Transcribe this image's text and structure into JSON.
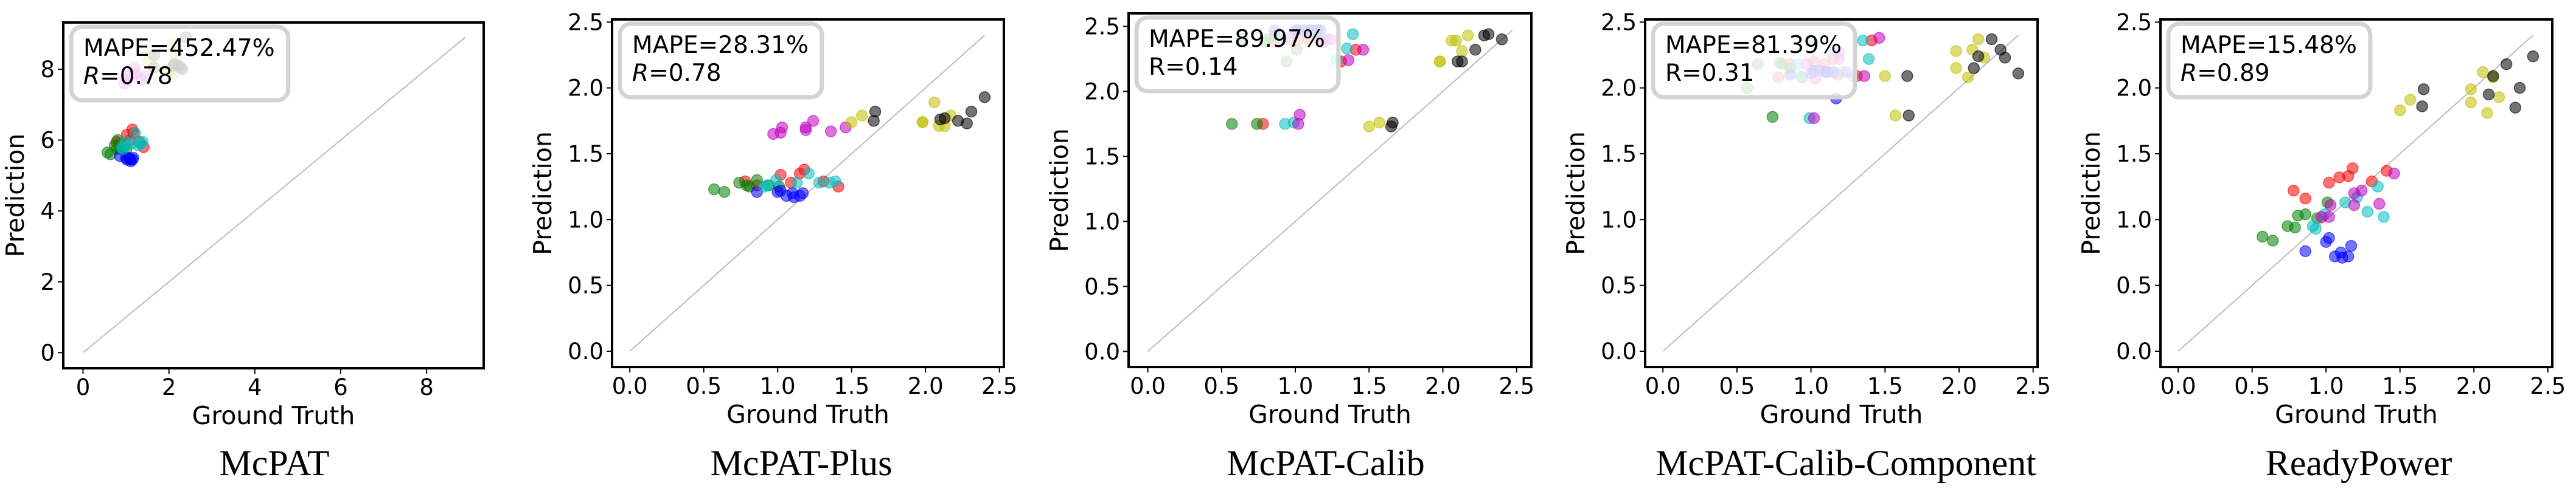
{
  "chart_data": [
    {
      "type": "scatter",
      "title": "McPAT",
      "xlabel": "Ground Truth",
      "ylabel": "Prediction",
      "xlim": [
        -0.46,
        9.33
      ],
      "ylim": [
        -0.44,
        9.32
      ],
      "xticks": [
        "0",
        "2",
        "4",
        "6",
        "8"
      ],
      "yticks": [
        "0",
        "2",
        "4",
        "6",
        "8"
      ],
      "tick_step": 2,
      "diagonal_max": 8.9,
      "annotation": {
        "mape": "MAPE=452.47%",
        "r_symbol": "R",
        "r_value": "=0.78",
        "r_italic": true
      },
      "legend_placement": "top-left",
      "series": [
        {
          "name": "red",
          "color": "#ff0000",
          "x": [
            0.78,
            0.86,
            1.02,
            1.09,
            1.15,
            1.18,
            1.31,
            1.41
          ],
          "y": [
            5.95,
            5.9,
            6.15,
            6.0,
            6.3,
            6.2,
            5.95,
            5.8
          ]
        },
        {
          "name": "green",
          "color": "#008000",
          "x": [
            0.57,
            0.64,
            0.74,
            0.79,
            0.81,
            0.86,
            0.94,
            1.01
          ],
          "y": [
            5.65,
            5.6,
            5.85,
            5.75,
            6.0,
            5.75,
            5.8,
            5.75
          ]
        },
        {
          "name": "blue",
          "color": "#0000ff",
          "x": [
            0.86,
            1.0,
            1.02,
            1.06,
            1.1,
            1.11,
            1.15,
            1.17
          ],
          "y": [
            5.55,
            5.5,
            5.45,
            5.5,
            5.45,
            5.4,
            5.45,
            5.5
          ]
        },
        {
          "name": "cyan",
          "color": "#00bfbf",
          "x": [
            0.91,
            0.93,
            0.99,
            1.13,
            1.21,
            1.28,
            1.35,
            1.39
          ],
          "y": [
            5.8,
            5.75,
            5.95,
            5.9,
            6.2,
            5.85,
            5.9,
            5.95
          ]
        },
        {
          "name": "magenta",
          "color": "#bf00bf",
          "x": [
            0.97,
            1.02,
            1.03,
            1.19,
            1.19,
            1.24,
            1.36,
            1.46
          ],
          "y": [
            7.6,
            7.7,
            7.8,
            8.05,
            7.85,
            7.9,
            7.7,
            7.8
          ]
        },
        {
          "name": "yellow",
          "color": "#bfbf00",
          "x": [
            1.5,
            1.57,
            1.98,
            1.98,
            2.06,
            2.09,
            2.13,
            2.17
          ],
          "y": [
            8.2,
            8.4,
            7.95,
            8.0,
            8.7,
            7.85,
            8.0,
            8.3
          ]
        },
        {
          "name": "black",
          "color": "#000000",
          "x": [
            1.65,
            1.66,
            2.1,
            2.13,
            2.22,
            2.28,
            2.31,
            2.4
          ],
          "y": [
            8.05,
            8.4,
            8.1,
            8.15,
            8.1,
            8.05,
            8.0,
            8.9
          ]
        }
      ]
    },
    {
      "type": "scatter",
      "title": "McPAT-Plus",
      "xlabel": "Ground Truth",
      "ylabel": "Prediction",
      "xlim": [
        -0.12,
        2.53
      ],
      "ylim": [
        -0.12,
        2.52
      ],
      "xticks": [
        "0.0",
        "0.5",
        "1.0",
        "1.5",
        "2.0",
        "2.5"
      ],
      "yticks": [
        "0.0",
        "0.5",
        "1.0",
        "1.5",
        "2.0",
        "2.5"
      ],
      "tick_step": 0.5,
      "diagonal_max": 2.4,
      "annotation": {
        "mape": "MAPE=28.31%",
        "r_symbol": "R",
        "r_value": "=0.78",
        "r_italic": true
      },
      "legend_placement": "top-left",
      "series": [
        {
          "name": "red",
          "color": "#ff0000",
          "x": [
            0.78,
            0.86,
            1.02,
            1.09,
            1.15,
            1.18,
            1.31,
            1.41
          ],
          "y": [
            1.29,
            1.26,
            1.34,
            1.28,
            1.35,
            1.38,
            1.29,
            1.25
          ]
        },
        {
          "name": "green",
          "color": "#008000",
          "x": [
            0.57,
            0.64,
            0.74,
            0.79,
            0.81,
            0.86,
            0.94,
            1.01
          ],
          "y": [
            1.23,
            1.21,
            1.28,
            1.26,
            1.25,
            1.3,
            1.26,
            1.25
          ]
        },
        {
          "name": "blue",
          "color": "#0000ff",
          "x": [
            0.86,
            1.0,
            1.02,
            1.06,
            1.1,
            1.11,
            1.15,
            1.17
          ],
          "y": [
            1.21,
            1.21,
            1.22,
            1.18,
            1.2,
            1.17,
            1.18,
            1.2
          ]
        },
        {
          "name": "cyan",
          "color": "#00bfbf",
          "x": [
            0.91,
            0.93,
            0.99,
            1.13,
            1.21,
            1.28,
            1.35,
            1.39
          ],
          "y": [
            1.25,
            1.26,
            1.3,
            1.28,
            1.35,
            1.28,
            1.28,
            1.29
          ]
        },
        {
          "name": "magenta",
          "color": "#bf00bf",
          "x": [
            0.97,
            1.02,
            1.03,
            1.19,
            1.19,
            1.24,
            1.36,
            1.46
          ],
          "y": [
            1.65,
            1.66,
            1.7,
            1.7,
            1.68,
            1.75,
            1.67,
            1.7
          ]
        },
        {
          "name": "yellow",
          "color": "#bfbf00",
          "x": [
            1.5,
            1.57,
            1.98,
            1.98,
            2.06,
            2.09,
            2.13,
            2.17
          ],
          "y": [
            1.74,
            1.79,
            1.74,
            1.74,
            1.89,
            1.71,
            1.71,
            1.79
          ]
        },
        {
          "name": "black",
          "color": "#000000",
          "x": [
            1.65,
            1.66,
            2.1,
            2.13,
            2.22,
            2.28,
            2.31,
            2.4
          ],
          "y": [
            1.75,
            1.82,
            1.76,
            1.77,
            1.75,
            1.73,
            1.82,
            1.93
          ]
        }
      ]
    },
    {
      "type": "scatter",
      "title": "McPAT-Calib",
      "xlabel": "Ground Truth",
      "ylabel": "Prediction",
      "xlim": [
        -0.13,
        2.6
      ],
      "ylim": [
        -0.12,
        2.6
      ],
      "xticks": [
        "0.0",
        "0.5",
        "1.0",
        "1.5",
        "2.0",
        "2.5"
      ],
      "yticks": [
        "0.0",
        "0.5",
        "1.0",
        "1.5",
        "2.0",
        "2.5"
      ],
      "tick_step": 0.5,
      "diagonal_max": 2.47,
      "annotation": {
        "mape": "MAPE=89.97%",
        "r_symbol": "R",
        "r_value": "=0.14",
        "r_italic": false
      },
      "legend_placement": "top-left",
      "series": [
        {
          "name": "red",
          "color": "#ff0000",
          "x": [
            0.78,
            0.86,
            1.02,
            1.09,
            1.15,
            1.18,
            1.31,
            1.41
          ],
          "y": [
            1.75,
            2.38,
            2.4,
            2.4,
            2.42,
            2.4,
            2.23,
            2.32
          ]
        },
        {
          "name": "green",
          "color": "#008000",
          "x": [
            0.57,
            0.64,
            0.74,
            0.79,
            0.81,
            0.86,
            0.94,
            1.01
          ],
          "y": [
            1.75,
            2.4,
            1.75,
            2.38,
            2.4,
            2.43,
            2.23,
            2.32
          ]
        },
        {
          "name": "blue",
          "color": "#0000ff",
          "x": [
            0.86,
            1.0,
            1.02,
            1.06,
            1.1,
            1.11,
            1.15,
            1.17
          ],
          "y": [
            2.47,
            2.47,
            2.47,
            2.47,
            2.47,
            2.47,
            2.47,
            2.47
          ]
        },
        {
          "name": "cyan",
          "color": "#00bfbf",
          "x": [
            0.91,
            0.93,
            0.99,
            1.13,
            1.21,
            1.28,
            1.35,
            1.39
          ],
          "y": [
            2.4,
            1.75,
            1.76,
            2.42,
            2.4,
            2.24,
            2.33,
            2.44
          ]
        },
        {
          "name": "magenta",
          "color": "#bf00bf",
          "x": [
            0.97,
            1.02,
            1.03,
            1.19,
            1.19,
            1.24,
            1.36,
            1.46
          ],
          "y": [
            2.4,
            1.75,
            1.82,
            2.4,
            2.38,
            2.4,
            2.24,
            2.32
          ]
        },
        {
          "name": "yellow",
          "color": "#bfbf00",
          "x": [
            1.5,
            1.57,
            1.98,
            1.98,
            2.06,
            2.09,
            2.13,
            2.17
          ],
          "y": [
            1.73,
            1.76,
            2.23,
            2.23,
            2.39,
            2.39,
            2.31,
            2.43
          ]
        },
        {
          "name": "black",
          "color": "#000000",
          "x": [
            1.65,
            1.66,
            2.1,
            2.13,
            2.22,
            2.28,
            2.31,
            2.4
          ],
          "y": [
            1.73,
            1.76,
            2.23,
            2.23,
            2.32,
            2.43,
            2.44,
            2.4
          ]
        }
      ]
    },
    {
      "type": "scatter",
      "title": "McPAT-Calib-Component",
      "xlabel": "Ground Truth",
      "ylabel": "Prediction",
      "xlim": [
        -0.12,
        2.53
      ],
      "ylim": [
        -0.12,
        2.52
      ],
      "xticks": [
        "0.0",
        "0.5",
        "1.0",
        "1.5",
        "2.0",
        "2.5"
      ],
      "yticks": [
        "0.0",
        "0.5",
        "1.0",
        "1.5",
        "2.0",
        "2.5"
      ],
      "tick_step": 0.5,
      "diagonal_max": 2.4,
      "annotation": {
        "mape": "MAPE=81.39%",
        "r_symbol": "R",
        "r_value": "=0.31",
        "r_italic": false
      },
      "legend_placement": "top-left",
      "series": [
        {
          "name": "red",
          "color": "#ff0000",
          "x": [
            0.78,
            0.86,
            1.02,
            1.09,
            1.15,
            1.18,
            1.31,
            1.41
          ],
          "y": [
            2.08,
            2.18,
            2.2,
            2.18,
            2.22,
            2.1,
            2.09,
            2.36
          ]
        },
        {
          "name": "green",
          "color": "#008000",
          "x": [
            0.57,
            0.64,
            0.74,
            0.79,
            0.81,
            0.86,
            0.94,
            1.01
          ],
          "y": [
            2.0,
            2.18,
            1.78,
            2.19,
            2.18,
            2.15,
            2.08,
            2.35
          ]
        },
        {
          "name": "blue",
          "color": "#0000ff",
          "x": [
            0.86,
            1.0,
            1.02,
            1.06,
            1.1,
            1.11,
            1.15,
            1.17
          ],
          "y": [
            2.1,
            2.11,
            2.13,
            2.13,
            2.12,
            2.12,
            2.12,
            1.92
          ]
        },
        {
          "name": "cyan",
          "color": "#00bfbf",
          "x": [
            0.91,
            0.93,
            0.99,
            1.13,
            1.21,
            1.28,
            1.35,
            1.39
          ],
          "y": [
            2.18,
            2.09,
            1.77,
            2.27,
            2.12,
            2.09,
            2.36,
            2.22
          ]
        },
        {
          "name": "magenta",
          "color": "#bf00bf",
          "x": [
            0.97,
            1.02,
            1.03,
            1.19,
            1.19,
            1.24,
            1.36,
            1.46
          ],
          "y": [
            2.18,
            1.77,
            2.07,
            2.27,
            2.22,
            2.12,
            2.09,
            2.38
          ]
        },
        {
          "name": "yellow",
          "color": "#bfbf00",
          "x": [
            1.5,
            1.57,
            1.98,
            1.98,
            2.06,
            2.09,
            2.13,
            2.17
          ],
          "y": [
            2.09,
            1.79,
            2.28,
            2.15,
            2.08,
            2.29,
            2.37,
            2.23
          ]
        },
        {
          "name": "black",
          "color": "#000000",
          "x": [
            1.65,
            1.66,
            2.1,
            2.13,
            2.22,
            2.28,
            2.31,
            2.4
          ],
          "y": [
            2.09,
            1.79,
            2.15,
            2.24,
            2.37,
            2.29,
            2.23,
            2.11
          ]
        }
      ]
    },
    {
      "type": "scatter",
      "title": "ReadyPower",
      "xlabel": "Ground Truth",
      "ylabel": "Prediction",
      "xlim": [
        -0.12,
        2.53
      ],
      "ylim": [
        -0.12,
        2.52
      ],
      "xticks": [
        "0.0",
        "0.5",
        "1.0",
        "1.5",
        "2.0",
        "2.5"
      ],
      "yticks": [
        "0.0",
        "0.5",
        "1.0",
        "1.5",
        "2.0",
        "2.5"
      ],
      "tick_step": 0.5,
      "diagonal_max": 2.4,
      "annotation": {
        "mape": "MAPE=15.48%",
        "r_symbol": "R",
        "r_value": "=0.89",
        "r_italic": true
      },
      "legend_placement": "top-left",
      "series": [
        {
          "name": "red",
          "color": "#ff0000",
          "x": [
            0.78,
            0.86,
            1.02,
            1.09,
            1.15,
            1.18,
            1.31,
            1.41
          ],
          "y": [
            1.22,
            1.16,
            1.28,
            1.32,
            1.33,
            1.39,
            1.29,
            1.37
          ]
        },
        {
          "name": "green",
          "color": "#008000",
          "x": [
            0.57,
            0.64,
            0.74,
            0.79,
            0.81,
            0.86,
            0.94,
            1.01
          ],
          "y": [
            0.87,
            0.84,
            0.95,
            0.94,
            1.03,
            1.04,
            1.01,
            1.13
          ]
        },
        {
          "name": "blue",
          "color": "#0000ff",
          "x": [
            0.86,
            1.0,
            1.02,
            1.06,
            1.1,
            1.11,
            1.15,
            1.17
          ],
          "y": [
            0.76,
            0.83,
            0.86,
            0.72,
            0.75,
            0.71,
            0.72,
            0.8
          ]
        },
        {
          "name": "cyan",
          "color": "#00bfbf",
          "x": [
            0.91,
            0.93,
            0.99,
            1.13,
            1.21,
            1.28,
            1.35,
            1.39
          ],
          "y": [
            0.95,
            0.93,
            1.04,
            1.13,
            1.17,
            1.06,
            1.25,
            1.02
          ]
        },
        {
          "name": "magenta",
          "color": "#bf00bf",
          "x": [
            0.97,
            1.02,
            1.03,
            1.19,
            1.19,
            1.24,
            1.36,
            1.46
          ],
          "y": [
            1.02,
            1.02,
            1.11,
            1.2,
            1.11,
            1.22,
            1.12,
            1.35
          ]
        },
        {
          "name": "yellow",
          "color": "#bfbf00",
          "x": [
            1.5,
            1.57,
            1.98,
            1.98,
            2.06,
            2.09,
            2.13,
            2.17
          ],
          "y": [
            1.83,
            1.91,
            1.99,
            1.89,
            2.12,
            1.81,
            2.08,
            1.93
          ]
        },
        {
          "name": "black",
          "color": "#000000",
          "x": [
            1.65,
            1.66,
            2.1,
            2.13,
            2.22,
            2.28,
            2.31,
            2.4
          ],
          "y": [
            1.86,
            1.99,
            1.95,
            2.09,
            2.18,
            1.85,
            2.0,
            2.24
          ]
        }
      ]
    }
  ]
}
